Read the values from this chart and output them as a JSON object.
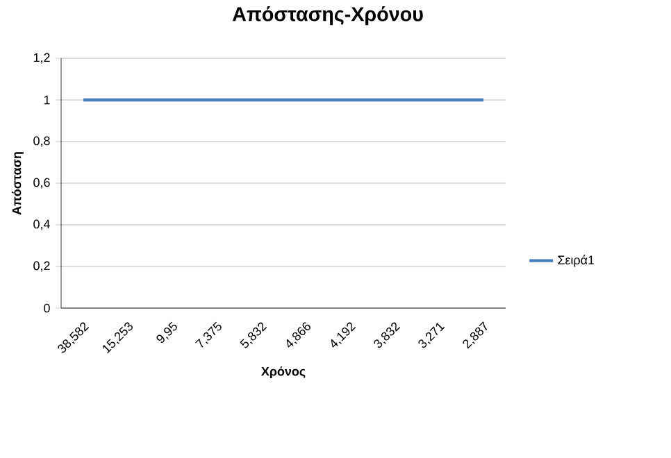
{
  "chart_data": {
    "type": "line",
    "title": "Απόστασης-Χρόνου",
    "xlabel": "Χρόνος",
    "ylabel": "Απόσταση",
    "categories": [
      "38,582",
      "15,253",
      "9,95",
      "7,375",
      "5,832",
      "4,866",
      "4,192",
      "3,832",
      "3,271",
      "2,887"
    ],
    "series": [
      {
        "name": "Σειρά1",
        "color": "#4a7ebb",
        "values": [
          1,
          1,
          1,
          1,
          1,
          1,
          1,
          1,
          1,
          1
        ]
      }
    ],
    "ylim": [
      0,
      1.2
    ],
    "yticks": [
      0,
      {
        "value": 0.2,
        "label": "0,2"
      },
      {
        "value": 0.4,
        "label": "0,4"
      },
      {
        "value": 0.6,
        "label": "0,6"
      },
      {
        "value": 0.8,
        "label": "0,8"
      },
      1,
      {
        "value": 1.2,
        "label": "1,2"
      }
    ],
    "grid": "y",
    "legend": "right"
  }
}
